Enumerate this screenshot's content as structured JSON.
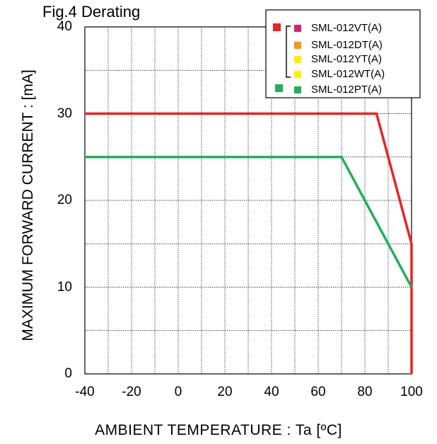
{
  "chart_data": {
    "type": "line",
    "title": "Fig.4 Derating",
    "xlabel": "AMBIENT TEMPERATURE : Ta [ºC]",
    "ylabel": "MAXIMUM FORWARD CURRENT : [mA]",
    "xlim": [
      -40,
      100
    ],
    "ylim": [
      0,
      40
    ],
    "x_ticks": [
      "-40",
      "-20",
      "0",
      "20",
      "40",
      "60",
      "80",
      "100"
    ],
    "y_ticks": [
      "0",
      "10",
      "20",
      "30",
      "40"
    ],
    "grid": true,
    "legend_position": "top-right",
    "series": [
      {
        "color": "#ee2222",
        "x": [
          -40,
          85,
          100,
          100
        ],
        "y": [
          30,
          30,
          15,
          0
        ]
      },
      {
        "color": "#20b05a",
        "x": [
          -40,
          70,
          100
        ],
        "y": [
          25,
          25,
          10
        ]
      }
    ],
    "legend": {
      "entries": [
        {
          "name": "SML-012VT(A)",
          "color": "#d6226e"
        },
        {
          "name": "SML-012DT(A)",
          "color": "#f0961e"
        },
        {
          "name": "SML-012YT(A)",
          "color": "#ffee00"
        },
        {
          "name": "SML-012WT(A)",
          "color": "#ffee00"
        },
        {
          "name": "SML-012PT(A)",
          "color": "#20b05a"
        }
      ],
      "group_markers": [
        {
          "color": "#ee2222",
          "applies_to": [
            "SML-012VT(A)",
            "SML-012DT(A)",
            "SML-012YT(A)",
            "SML-012WT(A)"
          ]
        },
        {
          "color": "#20b05a",
          "applies_to": [
            "SML-012PT(A)"
          ]
        }
      ]
    }
  }
}
